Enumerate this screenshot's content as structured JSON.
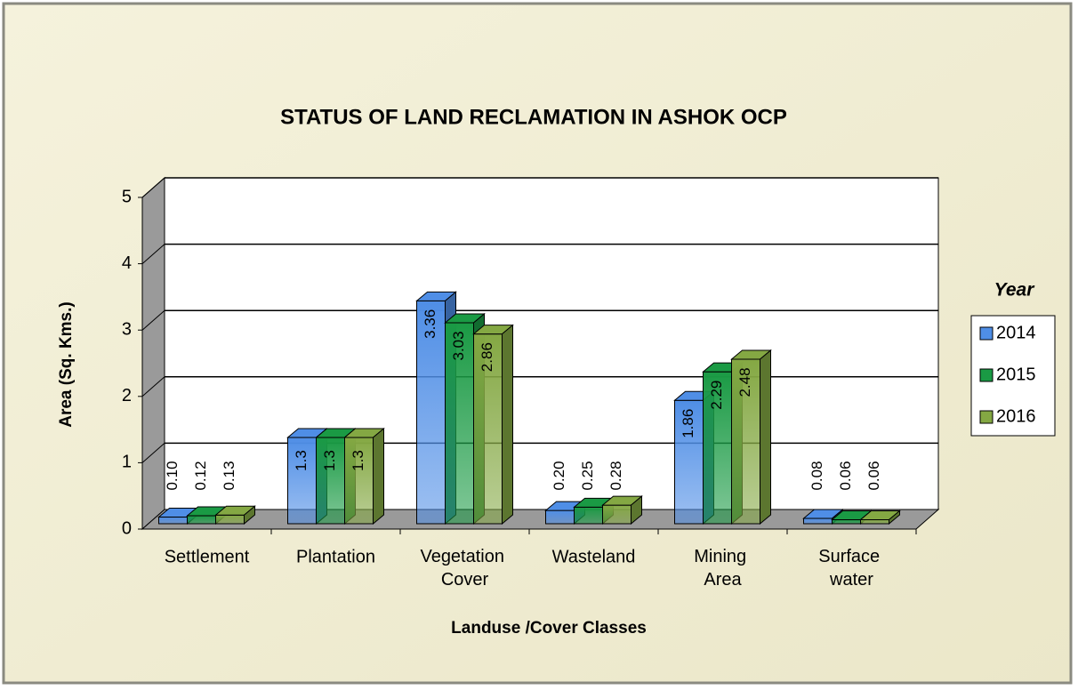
{
  "chart_data": {
    "type": "bar3d",
    "title": "STATUS OF LAND RECLAMATION  IN ASHOK OCP",
    "x_label": "Landuse /Cover Classes",
    "y_label": "Area (Sq. Kms.)",
    "legend_title": "Year",
    "legend": "right",
    "grid": true,
    "categories": [
      "Settlement",
      "Plantation",
      "Vegetation Cover",
      "Wasteland",
      "Mining Area",
      "Surface water"
    ],
    "series": [
      {
        "name": "2014",
        "color": "#4f8ee6",
        "values": [
          0.1,
          1.3,
          3.36,
          0.2,
          1.86,
          0.08
        ],
        "value_labels": [
          "0.10",
          "1.3",
          "3.36",
          "0.20",
          "1.86",
          "0.08"
        ]
      },
      {
        "name": "2015",
        "color": "#1a9a44",
        "values": [
          0.12,
          1.3,
          3.03,
          0.25,
          2.29,
          0.06
        ],
        "value_labels": [
          "0.12",
          "1.3",
          "3.03",
          "0.25",
          "2.29",
          "0.06"
        ]
      },
      {
        "name": "2016",
        "color": "#84a843",
        "values": [
          0.13,
          1.3,
          2.86,
          0.28,
          2.48,
          0.06
        ],
        "value_labels": [
          "0.13",
          "1.3",
          "2.86",
          "0.28",
          "2.48",
          "0.06"
        ]
      }
    ],
    "ylim": [
      0,
      5
    ],
    "yticks": [
      0,
      1,
      2,
      3,
      4,
      5
    ]
  }
}
